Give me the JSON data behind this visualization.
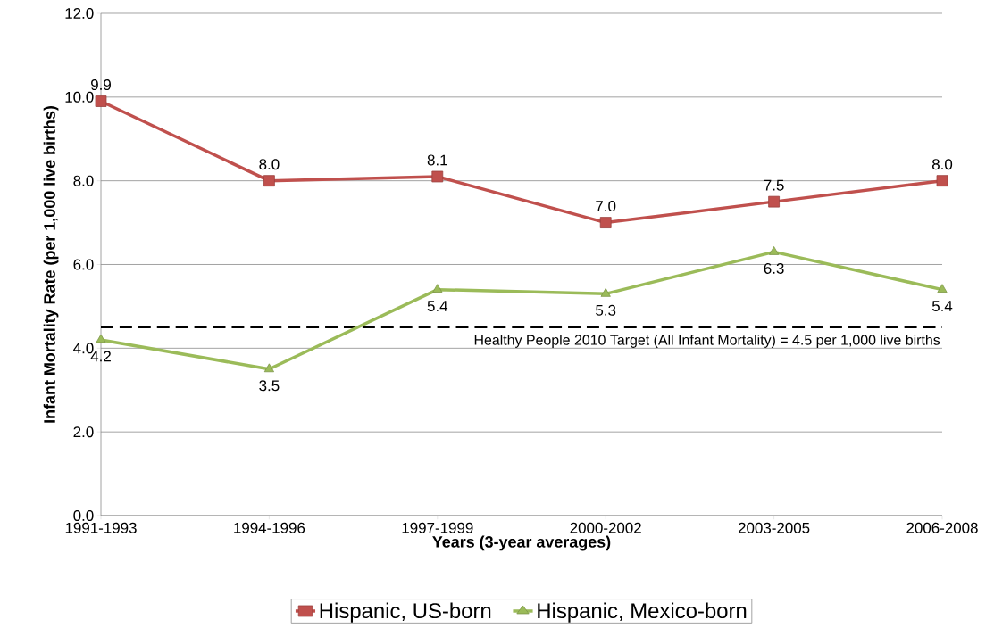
{
  "chart_data": {
    "type": "line",
    "xlabel": "Years (3-year averages)",
    "ylabel": "Infant Mortality Rate (per 1,000 live births)",
    "categories": [
      "1991-1993",
      "1994-1996",
      "1997-1999",
      "2000-2002",
      "2003-2005",
      "2006-2008"
    ],
    "series": [
      {
        "name": "Hispanic, US-born",
        "color": "#c0504d",
        "marker": "square",
        "values": [
          9.9,
          8.0,
          8.1,
          7.0,
          7.5,
          8.0
        ],
        "value_labels": [
          "9.9",
          "8.0",
          "8.1",
          "7.0",
          "7.5",
          "8.0"
        ]
      },
      {
        "name": "Hispanic, Mexico-born",
        "color": "#9bbb59",
        "marker": "triangle",
        "values": [
          4.2,
          3.5,
          5.4,
          5.3,
          6.3,
          5.4
        ],
        "value_labels": [
          "4.2",
          "3.5",
          "5.4",
          "5.3",
          "6.3",
          "5.4"
        ]
      }
    ],
    "ylim": [
      0,
      12
    ],
    "yticks": [
      {
        "value": 0,
        "label": "0.0"
      },
      {
        "value": 2,
        "label": "2.0"
      },
      {
        "value": 4,
        "label": "4.0"
      },
      {
        "value": 6,
        "label": "6.0"
      },
      {
        "value": 8,
        "label": "8.0"
      },
      {
        "value": 10,
        "label": "10.0"
      },
      {
        "value": 12,
        "label": "12.0"
      }
    ],
    "ref_lines": [
      {
        "axis": "y",
        "value": 4.5,
        "label": "Healthy People 2010 Target (All Infant Mortality) = 4.5 per 1,000 live births",
        "color": "#000000",
        "line_style": "dashed"
      }
    ],
    "grid": "y",
    "legend": "bottom",
    "line_style": "solid"
  }
}
